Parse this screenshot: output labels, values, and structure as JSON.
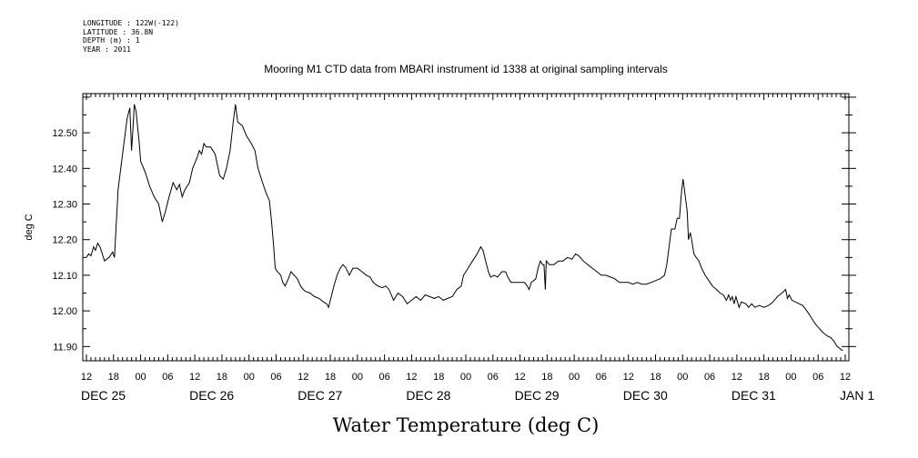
{
  "metadata": {
    "longitude": "LONGITUDE : 122W(-122)",
    "latitude": "LATITUDE : 36.8N",
    "depth": "DEPTH (m) : 1",
    "year": "YEAR : 2011"
  },
  "chart_data": {
    "type": "line",
    "title": "Mooring M1 CTD data from MBARI instrument id 1338 at original sampling intervals",
    "xlabel": "Water Temperature (deg C)",
    "ylabel": "deg C",
    "ylim": [
      11.86,
      12.61
    ],
    "yticks": [
      11.9,
      12.0,
      12.1,
      12.2,
      12.3,
      12.4,
      12.5
    ],
    "ytick_labels": [
      "11.90",
      "12.00",
      "12.10",
      "12.20",
      "12.30",
      "12.40",
      "12.50"
    ],
    "xlim": [
      0,
      168
    ],
    "x_units": "hours since DEC 25 12:00",
    "hour_labels": [
      "12",
      "18",
      "00",
      "06",
      "12",
      "18",
      "00",
      "06",
      "12",
      "18",
      "00",
      "06",
      "12",
      "18",
      "00",
      "06",
      "12",
      "18",
      "00",
      "06",
      "12",
      "18",
      "00",
      "06",
      "12",
      "18",
      "00",
      "06",
      "12"
    ],
    "day_labels": [
      {
        "label": "DEC 25",
        "x": 0
      },
      {
        "label": "DEC 26",
        "x": 24
      },
      {
        "label": "DEC 27",
        "x": 48
      },
      {
        "label": "DEC 28",
        "x": 72
      },
      {
        "label": "DEC 29",
        "x": 96
      },
      {
        "label": "DEC 30",
        "x": 120
      },
      {
        "label": "DEC 31",
        "x": 144
      },
      {
        "label": "JAN  1",
        "x": 168
      }
    ],
    "series": [
      {
        "points": [
          [
            0,
            12.15
          ],
          [
            0.5,
            12.16
          ],
          [
            1,
            12.155
          ],
          [
            1.6,
            12.18
          ],
          [
            2,
            12.17
          ],
          [
            2.5,
            12.19
          ],
          [
            3,
            12.18
          ],
          [
            3.5,
            12.16
          ],
          [
            4,
            12.14
          ],
          [
            5,
            12.15
          ],
          [
            5.8,
            12.165
          ],
          [
            6.2,
            12.15
          ],
          [
            7,
            12.34
          ],
          [
            8,
            12.44
          ],
          [
            9,
            12.54
          ],
          [
            9.6,
            12.57
          ],
          [
            10,
            12.45
          ],
          [
            10.3,
            12.51
          ],
          [
            10.6,
            12.58
          ],
          [
            11,
            12.56
          ],
          [
            11.3,
            12.52
          ],
          [
            11.7,
            12.47
          ],
          [
            12,
            12.42
          ],
          [
            13,
            12.39
          ],
          [
            14,
            12.35
          ],
          [
            15,
            12.32
          ],
          [
            16,
            12.3
          ],
          [
            16.8,
            12.25
          ],
          [
            17.5,
            12.28
          ],
          [
            18.3,
            12.32
          ],
          [
            19.2,
            12.36
          ],
          [
            20,
            12.34
          ],
          [
            20.6,
            12.355
          ],
          [
            21.2,
            12.32
          ],
          [
            21.8,
            12.34
          ],
          [
            22.8,
            12.36
          ],
          [
            23.5,
            12.4
          ],
          [
            24.5,
            12.43
          ],
          [
            25,
            12.45
          ],
          [
            25.5,
            12.44
          ],
          [
            26,
            12.47
          ],
          [
            26.5,
            12.46
          ],
          [
            27.5,
            12.46
          ],
          [
            28.5,
            12.44
          ],
          [
            29.5,
            12.38
          ],
          [
            30.3,
            12.37
          ],
          [
            31,
            12.4
          ],
          [
            31.8,
            12.45
          ],
          [
            32.5,
            12.53
          ],
          [
            33,
            12.58
          ],
          [
            33.5,
            12.53
          ],
          [
            34.5,
            12.52
          ],
          [
            35.5,
            12.49
          ],
          [
            36.5,
            12.47
          ],
          [
            37.3,
            12.45
          ],
          [
            38,
            12.4
          ],
          [
            39,
            12.36
          ],
          [
            39.8,
            12.33
          ],
          [
            40.5,
            12.31
          ],
          [
            41,
            12.25
          ],
          [
            41.4,
            12.19
          ],
          [
            41.8,
            12.12
          ],
          [
            42.3,
            12.11
          ],
          [
            43,
            12.1
          ],
          [
            43.5,
            12.08
          ],
          [
            44,
            12.07
          ],
          [
            44.7,
            12.09
          ],
          [
            45.3,
            12.11
          ],
          [
            46,
            12.1
          ],
          [
            46.7,
            12.09
          ],
          [
            47.4,
            12.07
          ],
          [
            48,
            12.06
          ],
          [
            48.5,
            12.055
          ],
          [
            49.5,
            12.05
          ],
          [
            50.5,
            12.04
          ],
          [
            51.5,
            12.035
          ],
          [
            52.5,
            12.025
          ],
          [
            53.2,
            12.02
          ],
          [
            53.6,
            12.01
          ],
          [
            54,
            12.03
          ],
          [
            54.8,
            12.07
          ],
          [
            55.5,
            12.1
          ],
          [
            56.2,
            12.12
          ],
          [
            56.8,
            12.13
          ],
          [
            57.5,
            12.12
          ],
          [
            58.2,
            12.1
          ],
          [
            59,
            12.12
          ],
          [
            60,
            12.12
          ],
          [
            61,
            12.11
          ],
          [
            62,
            12.1
          ],
          [
            62.8,
            12.095
          ],
          [
            63.5,
            12.08
          ],
          [
            64.5,
            12.07
          ],
          [
            65.5,
            12.065
          ],
          [
            66.3,
            12.07
          ],
          [
            67,
            12.06
          ],
          [
            68,
            12.03
          ],
          [
            69,
            12.05
          ],
          [
            70,
            12.04
          ],
          [
            71,
            12.02
          ],
          [
            72,
            12.03
          ],
          [
            73,
            12.04
          ],
          [
            74,
            12.03
          ],
          [
            75,
            12.045
          ],
          [
            76,
            12.04
          ],
          [
            77,
            12.035
          ],
          [
            78,
            12.04
          ],
          [
            79,
            12.03
          ],
          [
            80,
            12.035
          ],
          [
            81,
            12.04
          ],
          [
            82,
            12.06
          ],
          [
            83,
            12.07
          ],
          [
            83.5,
            12.1
          ],
          [
            84.5,
            12.12
          ],
          [
            85.5,
            12.14
          ],
          [
            86.5,
            12.16
          ],
          [
            87.3,
            12.18
          ],
          [
            87.8,
            12.17
          ],
          [
            88.4,
            12.14
          ],
          [
            89,
            12.11
          ],
          [
            89.5,
            12.095
          ],
          [
            90.3,
            12.1
          ],
          [
            91,
            12.095
          ],
          [
            92,
            12.11
          ],
          [
            92.8,
            12.11
          ],
          [
            93.3,
            12.095
          ],
          [
            94,
            12.08
          ],
          [
            95,
            12.08
          ],
          [
            96,
            12.08
          ],
          [
            97,
            12.08
          ],
          [
            97.6,
            12.07
          ],
          [
            98,
            12.06
          ],
          [
            98.5,
            12.08
          ],
          [
            99.5,
            12.09
          ],
          [
            100,
            12.12
          ],
          [
            100.5,
            12.14
          ],
          [
            101,
            12.13
          ],
          [
            101.3,
            12.13
          ],
          [
            101.6,
            12.06
          ],
          [
            101.8,
            12.14
          ],
          [
            102.5,
            12.13
          ],
          [
            103.5,
            12.13
          ],
          [
            104.5,
            12.14
          ],
          [
            105.5,
            12.14
          ],
          [
            106.5,
            12.15
          ],
          [
            107.5,
            12.145
          ],
          [
            108.3,
            12.16
          ],
          [
            109,
            12.155
          ],
          [
            110,
            12.14
          ],
          [
            111,
            12.13
          ],
          [
            112,
            12.12
          ],
          [
            113,
            12.11
          ],
          [
            114,
            12.1
          ],
          [
            115,
            12.1
          ],
          [
            116,
            12.095
          ],
          [
            117,
            12.09
          ],
          [
            118,
            12.08
          ],
          [
            119,
            12.08
          ],
          [
            120,
            12.08
          ],
          [
            121,
            12.075
          ],
          [
            122,
            12.08
          ],
          [
            123,
            12.075
          ],
          [
            124,
            12.075
          ],
          [
            125,
            12.08
          ],
          [
            126,
            12.085
          ],
          [
            127,
            12.09
          ],
          [
            128,
            12.1
          ],
          [
            128.5,
            12.13
          ],
          [
            129,
            12.18
          ],
          [
            129.5,
            12.23
          ],
          [
            130.3,
            12.23
          ],
          [
            130.8,
            12.26
          ],
          [
            131.3,
            12.26
          ],
          [
            131.8,
            12.34
          ],
          [
            132.1,
            12.37
          ],
          [
            132.5,
            12.33
          ],
          [
            133,
            12.28
          ],
          [
            133.3,
            12.2
          ],
          [
            133.7,
            12.22
          ],
          [
            134,
            12.2
          ],
          [
            134.5,
            12.16
          ],
          [
            135,
            12.15
          ],
          [
            135.6,
            12.14
          ],
          [
            136.2,
            12.12
          ],
          [
            137,
            12.1
          ],
          [
            137.8,
            12.085
          ],
          [
            138.6,
            12.07
          ],
          [
            139.5,
            12.06
          ],
          [
            140.3,
            12.05
          ],
          [
            141,
            12.045
          ],
          [
            141.7,
            12.03
          ],
          [
            142.2,
            12.045
          ],
          [
            142.6,
            12.03
          ],
          [
            143,
            12.04
          ],
          [
            143.4,
            12.02
          ],
          [
            143.8,
            12.04
          ],
          [
            144.5,
            12.01
          ],
          [
            145,
            12.025
          ],
          [
            146,
            12.02
          ],
          [
            146.6,
            12.01
          ],
          [
            147.3,
            12.02
          ],
          [
            148,
            12.01
          ],
          [
            149,
            12.015
          ],
          [
            150,
            12.01
          ],
          [
            151,
            12.015
          ],
          [
            152,
            12.025
          ],
          [
            153,
            12.04
          ],
          [
            154,
            12.05
          ],
          [
            154.8,
            12.06
          ],
          [
            155.2,
            12.035
          ],
          [
            155.6,
            12.045
          ],
          [
            156.2,
            12.03
          ],
          [
            157,
            12.025
          ],
          [
            157.8,
            12.02
          ],
          [
            158.6,
            12.015
          ],
          [
            159.5,
            12.0
          ],
          [
            160.3,
            11.985
          ],
          [
            161,
            11.97
          ],
          [
            161.6,
            11.96
          ],
          [
            162.3,
            11.95
          ],
          [
            163,
            11.94
          ],
          [
            164,
            11.93
          ],
          [
            164.8,
            11.925
          ],
          [
            165.5,
            11.915
          ],
          [
            166.2,
            11.9
          ],
          [
            166.8,
            11.895
          ],
          [
            167.2,
            11.89
          ],
          [
            167.5,
            11.89
          ]
        ]
      }
    ]
  }
}
